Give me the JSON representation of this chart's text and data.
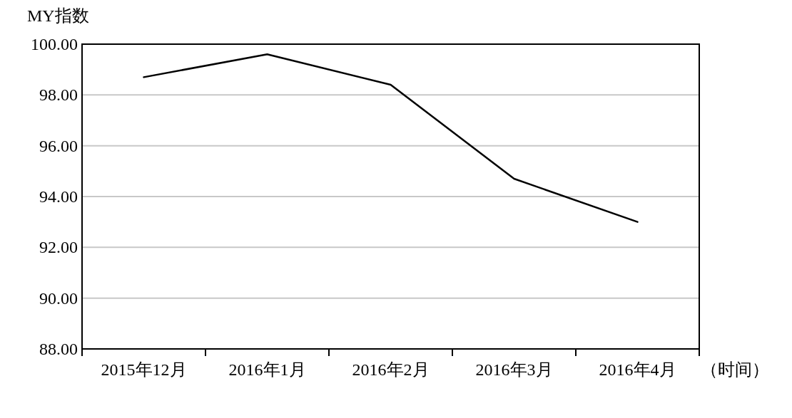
{
  "chart_data": {
    "type": "line",
    "ylabel": "MY指数",
    "xlabel": "（时间）",
    "categories": [
      "2015年12月",
      "2016年1月",
      "2016年2月",
      "2016年3月",
      "2016年4月"
    ],
    "series": [
      {
        "color": "#000000",
        "values": [
          98.7,
          99.6,
          98.4,
          94.7,
          93.0
        ]
      }
    ],
    "ylim": [
      88,
      100
    ],
    "yticks": [
      {
        "value": 88,
        "label": "88.00"
      },
      {
        "value": 90,
        "label": "90.00"
      },
      {
        "value": 92,
        "label": "92.00"
      },
      {
        "value": 94,
        "label": "94.00"
      },
      {
        "value": 96,
        "label": "96.00"
      },
      {
        "value": 98,
        "label": "98.00"
      },
      {
        "value": 100,
        "label": "100.00"
      }
    ],
    "grid": "y",
    "marker": "none",
    "line_style": "solid"
  }
}
